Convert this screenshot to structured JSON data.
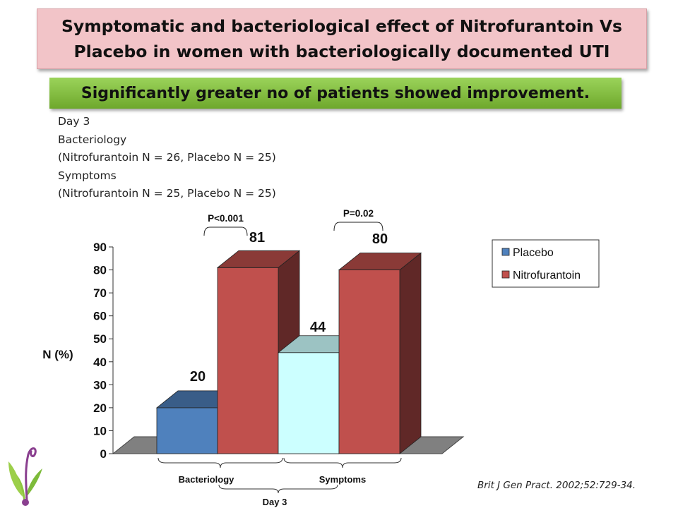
{
  "title": "Symptomatic and bacteriological  effect of Nitrofurantoin Vs Placebo in women with bacteriologically documented UTI",
  "subtitle": "Significantly greater no of patients showed improvement.",
  "notes": [
    "Day 3",
    "Bacteriology",
    "(Nitrofurantoin N = 26, Placebo N = 25)",
    "Symptoms",
    "(Nitrofurantoin N = 25, Placebo N = 25)"
  ],
  "citation": "Brit J Gen Pract. 2002;52:729-34.",
  "colors": {
    "placebo": "#4f81bd",
    "placebo_symptoms": "#ccffff",
    "nitrofurantoin": "#c0504d",
    "floor": "#808080"
  },
  "chart_data": {
    "type": "bar",
    "style": "3d-clustered",
    "categories": [
      "Bacteriology",
      "Symptoms"
    ],
    "group_label": "Day 3",
    "series": [
      {
        "name": "Placebo",
        "values": [
          20,
          44
        ]
      },
      {
        "name": "Nitrofurantoin",
        "values": [
          81,
          80
        ]
      }
    ],
    "data_labels": [
      [
        "20",
        "44"
      ],
      [
        "81",
        "80"
      ]
    ],
    "p_values": [
      "P<0.001",
      "P=0.02"
    ],
    "ylabel": "N (%)",
    "xlabel": "",
    "ylim": [
      0,
      90
    ],
    "yticks": [
      0,
      10,
      20,
      30,
      40,
      50,
      60,
      70,
      80,
      90
    ],
    "legend_position": "right"
  }
}
